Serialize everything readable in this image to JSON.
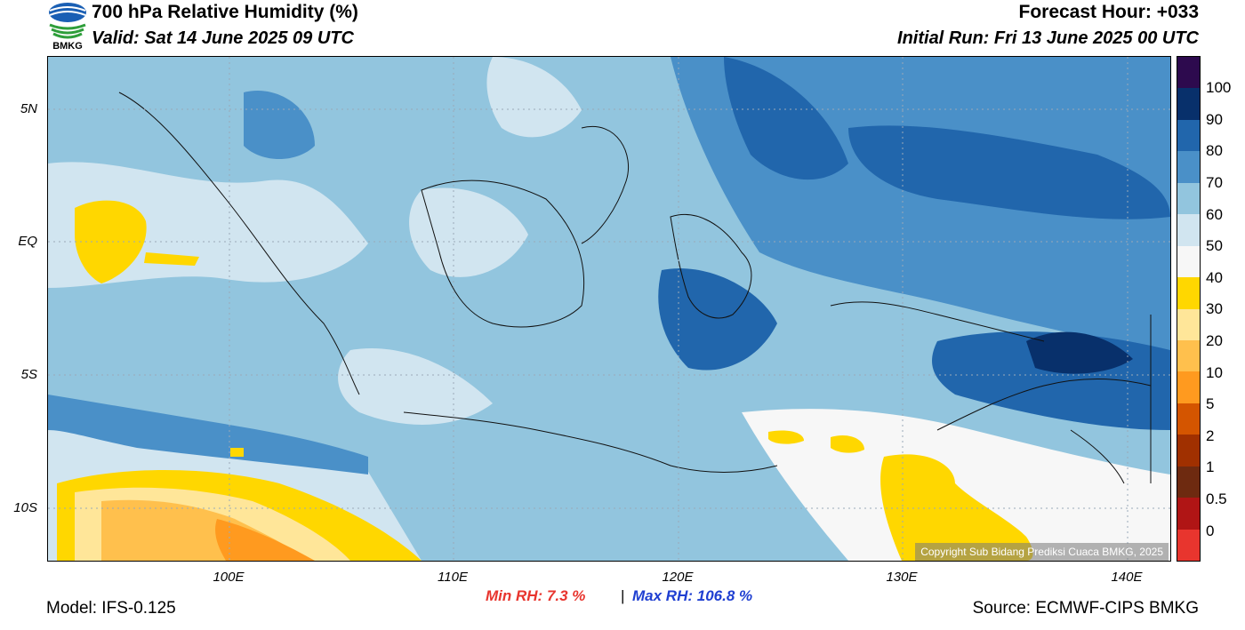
{
  "header": {
    "title": "700 hPa Relative Humidity (%)",
    "valid": "Valid: Sat 14 June 2025 09 UTC",
    "forecast_hour": "Forecast Hour: +033",
    "initial_run": "Initial Run: Fri 13 June 2025 00 UTC"
  },
  "logo": {
    "text": "BMKG",
    "icon": "bmkg-logo-icon"
  },
  "axes": {
    "lat_labels": [
      "5N",
      "EQ",
      "5S",
      "10S"
    ],
    "lon_labels": [
      "100E",
      "110E",
      "120E",
      "130E",
      "140E"
    ]
  },
  "colorbar": {
    "labels": [
      "100",
      "90",
      "80",
      "70",
      "60",
      "50",
      "40",
      "30",
      "20",
      "10",
      "5",
      "2",
      "1",
      "0.5",
      "0"
    ],
    "colors": [
      "#2d0a4e",
      "#08306b",
      "#2166ac",
      "#4a90c8",
      "#92c5de",
      "#d1e5f0",
      "#f7f7f7",
      "#ffd700",
      "#ffe699",
      "#ffc04d",
      "#ff9a1f",
      "#d45500",
      "#a03000",
      "#6e2a10",
      "#b01515",
      "#e8352e"
    ]
  },
  "stats": {
    "min_label": "Min RH:",
    "min_value": "7.3 %",
    "separator": "|",
    "max_label": "Max RH:",
    "max_value": "106.8 %",
    "min_color": "#e8352e",
    "max_color": "#1f3fd1"
  },
  "footer": {
    "model": "Model: IFS-0.125",
    "source": "Source: ECMWF-CIPS BMKG",
    "copyright": "Copyright Sub Bidang Prediksi Cuaca BMKG, 2025"
  }
}
